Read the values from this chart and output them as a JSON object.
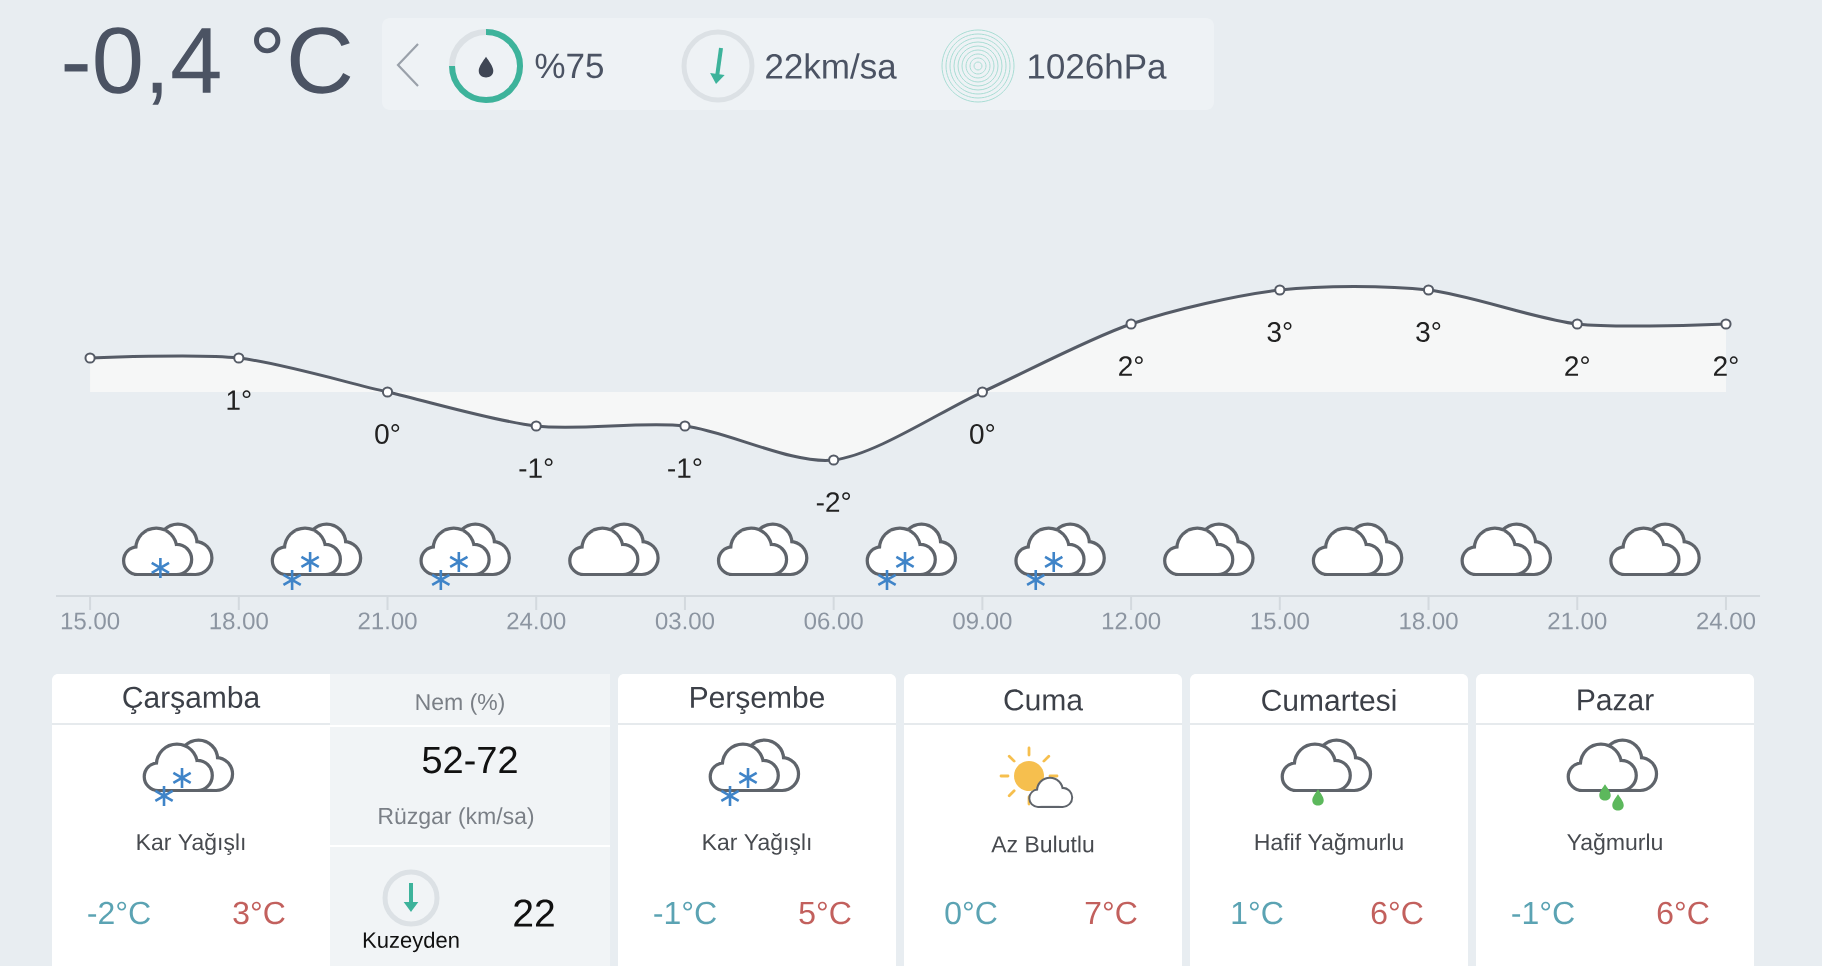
{
  "chart_data": [
    {
      "type": "other",
      "title": "-0,4 °C",
      "annotations": [
        "%75",
        "22km/sa",
        "1026hPa"
      ]
    },
    {
      "type": "area",
      "categories": [
        "15.00",
        "18.00",
        "21.00",
        "24.00",
        "03.00",
        "06.00",
        "09.00",
        "12.00",
        "15.00",
        "18.00",
        "21.00",
        "24.00"
      ],
      "values": [
        1,
        1,
        0,
        -1,
        -1,
        -2,
        0,
        2,
        3,
        3,
        2,
        2
      ],
      "value_labels": [
        null,
        "1°",
        "0°",
        "-1°",
        "-1°",
        "-2°",
        "0°",
        "2°",
        "3°",
        "3°",
        "2°",
        "2°"
      ],
      "color": "#555b66",
      "marker": "circle",
      "tick_labels": "x"
    },
    {
      "type": "other",
      "title": "Çarşamba",
      "annotations": [
        "Kar Yağışlı",
        "-2°C",
        "3°C",
        "Nem (%)",
        "52-72",
        "Rüzgar (km/sa)",
        "Kuzeyden",
        "22"
      ]
    },
    {
      "type": "other",
      "title": "Perşembe",
      "annotations": [
        "Kar Yağışlı",
        "-1°C",
        "5°C"
      ]
    },
    {
      "type": "other",
      "title": "Cuma",
      "annotations": [
        "Az Bulutlu",
        "0°C",
        "7°C"
      ]
    },
    {
      "type": "other",
      "title": "Cumartesi",
      "annotations": [
        "Hafif Yağmurlu",
        "1°C",
        "6°C"
      ]
    },
    {
      "type": "other",
      "title": "Pazar",
      "annotations": [
        "Yağmurlu",
        "-1°C",
        "6°C"
      ]
    }
  ]
}
